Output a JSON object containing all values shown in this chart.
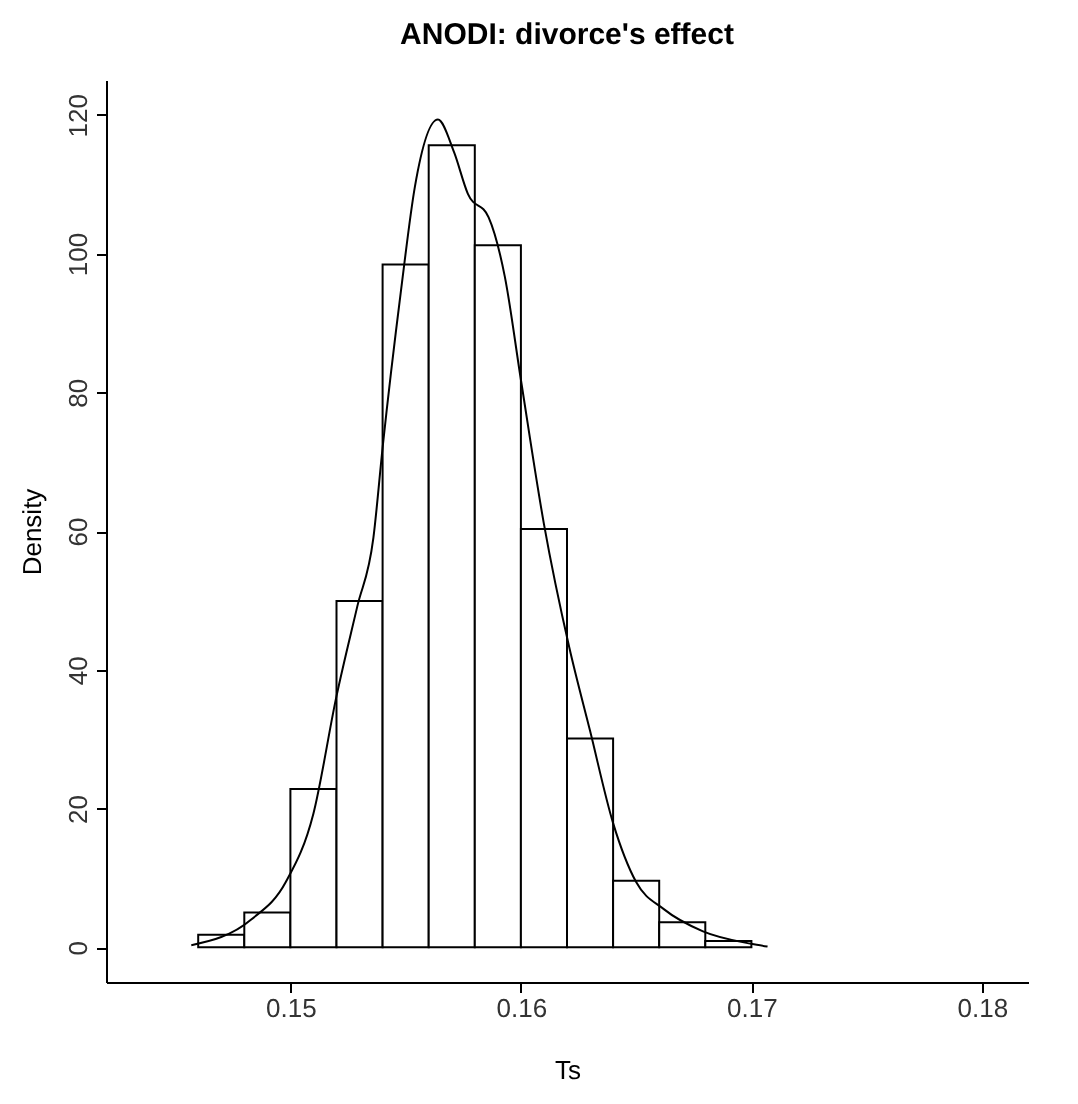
{
  "chart_data": {
    "type": "histogram",
    "title": "ANODI: divorce's effect",
    "xlabel": "Ts",
    "ylabel": "Density",
    "bins": [
      0.146,
      0.148,
      0.15,
      0.152,
      0.154,
      0.156,
      0.158,
      0.16,
      0.162,
      0.164,
      0.166,
      0.168,
      0.17
    ],
    "values": [
      1.8,
      5.0,
      22.8,
      49.9,
      98.4,
      115.6,
      101.2,
      60.3,
      30.1,
      9.6,
      3.6,
      0.9
    ],
    "color": "#ffffff",
    "series": [
      {
        "type": "line",
        "color": "#000000",
        "x": [
          0.1457,
          0.1483,
          0.1498,
          0.151,
          0.152,
          0.1529,
          0.1536,
          0.154,
          0.1548,
          0.1554,
          0.1564,
          0.1571,
          0.1577,
          0.1586,
          0.1593,
          0.16,
          0.161,
          0.1621,
          0.163,
          0.164,
          0.165,
          0.1662,
          0.1679,
          0.17,
          0.1707
        ],
        "values": [
          0.3,
          4.0,
          9.4,
          19.3,
          36.2,
          49.1,
          59,
          72,
          94.7,
          109.6,
          119.3,
          114.6,
          108.6,
          105.2,
          96.7,
          81.8,
          61,
          43.2,
          31.2,
          17.9,
          9.4,
          5.5,
          2.3,
          0.5,
          0.1
        ]
      }
    ],
    "xlim": [
      0.142,
      0.182
    ],
    "xticks": [
      0.15,
      0.16,
      0.17,
      0.18
    ],
    "ylim": [
      -5,
      125
    ],
    "yticks": [
      0,
      20,
      40,
      60,
      80,
      100,
      120
    ],
    "grid": false
  }
}
